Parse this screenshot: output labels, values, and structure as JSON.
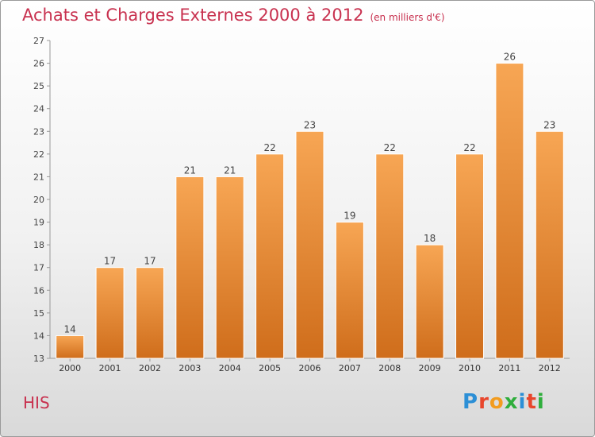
{
  "header": {
    "title": "Achats et Charges Externes 2000 à 2012",
    "subtitle": "(en milliers d'€)"
  },
  "footer": {
    "commune": "HIS",
    "logo": {
      "letters": [
        "P",
        "r",
        "o",
        "x",
        "i",
        "t",
        "i"
      ],
      "colors": [
        "#2c8fd6",
        "#e8462c",
        "#f29c1f",
        "#2fae3c",
        "#2c8fd6",
        "#e8462c",
        "#2fae3c"
      ]
    }
  },
  "chart_data": {
    "type": "bar",
    "title": "Achats et Charges Externes 2000 à 2012",
    "subtitle": "(en milliers d'€)",
    "categories": [
      "2000",
      "2001",
      "2002",
      "2003",
      "2004",
      "2005",
      "2006",
      "2007",
      "2008",
      "2009",
      "2010",
      "2011",
      "2012"
    ],
    "values": [
      14,
      17,
      17,
      21,
      21,
      22,
      23,
      19,
      22,
      18,
      22,
      26,
      23
    ],
    "ylim": [
      13,
      27
    ],
    "yticks": [
      "13",
      "14",
      "15",
      "16",
      "17",
      "18",
      "19",
      "20",
      "21",
      "22",
      "23",
      "24",
      "25",
      "26",
      "27"
    ],
    "grid": false,
    "bar_color_top": "#f7a654",
    "bar_color_bottom": "#cf6d1b"
  }
}
